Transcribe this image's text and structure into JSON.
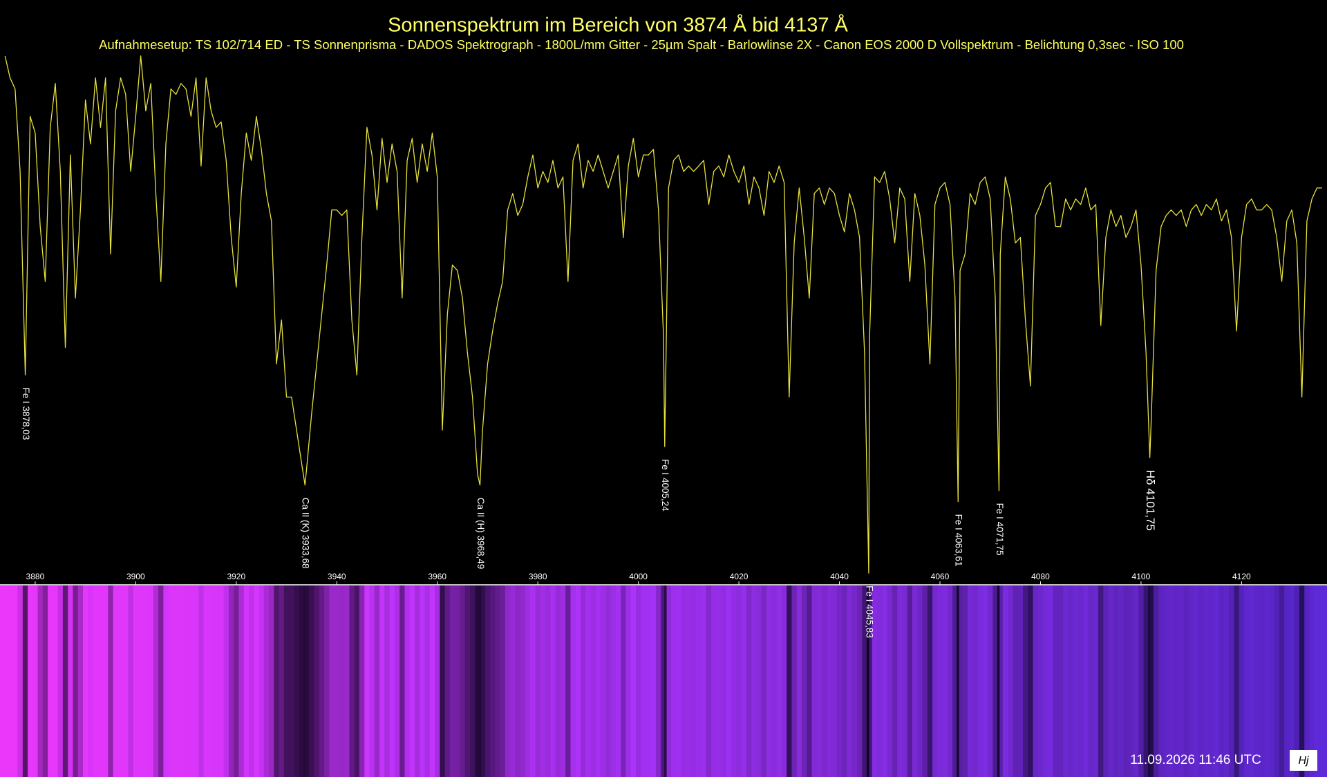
{
  "chart_data": {
    "type": "line",
    "title": "Sonnenspektrum im Bereich von 3874 Å  bid 4137 Å",
    "subtitle": "Aufnahmesetup: TS 102/714 ED - TS Sonnenprisma - DADOS Spektrograph - 1800L/mm Gitter - 25µm Spalt - Barlowlinse 2X - Canon EOS 2000 D Vollspektrum - Belichtung 0,3sec  - ISO 100",
    "xlim": [
      3873,
      4137
    ],
    "ylim": [
      0,
      100
    ],
    "xticks": [
      3880,
      3900,
      3920,
      3940,
      3960,
      3980,
      4000,
      4020,
      4040,
      4060,
      4080,
      4100,
      4120
    ],
    "series": [
      {
        "color": "#e8e23c",
        "x": [
          3874,
          3875,
          3876,
          3877,
          3878.03,
          3879,
          3880,
          3881,
          3882,
          3883,
          3884,
          3885,
          3886,
          3887,
          3888,
          3889,
          3890,
          3891,
          3892,
          3893,
          3894,
          3895,
          3896,
          3897,
          3898,
          3899,
          3900,
          3901,
          3902,
          3903,
          3904,
          3905,
          3906,
          3907,
          3908,
          3909,
          3910,
          3911,
          3912,
          3913,
          3914,
          3915,
          3916,
          3917,
          3918,
          3919,
          3920,
          3921,
          3922,
          3923,
          3924,
          3925,
          3926,
          3927,
          3928,
          3929,
          3930,
          3931,
          3932,
          3933,
          3933.68,
          3934,
          3935,
          3936,
          3937,
          3938,
          3939,
          3940,
          3941,
          3942,
          3943,
          3944,
          3945,
          3946,
          3947,
          3948,
          3949,
          3950,
          3951,
          3952,
          3953,
          3954,
          3955,
          3956,
          3957,
          3958,
          3959,
          3960,
          3961,
          3962,
          3963,
          3964,
          3965,
          3966,
          3967,
          3968,
          3968.49,
          3969,
          3970,
          3971,
          3972,
          3973,
          3974,
          3975,
          3976,
          3977,
          3978,
          3979,
          3980,
          3981,
          3982,
          3983,
          3984,
          3985,
          3986,
          3987,
          3988,
          3989,
          3990,
          3991,
          3992,
          3993,
          3994,
          3995,
          3996,
          3997,
          3998,
          3999,
          4000,
          4001,
          4002,
          4003,
          4004,
          4005,
          4005.24,
          4006,
          4007,
          4008,
          4009,
          4010,
          4011,
          4012,
          4013,
          4014,
          4015,
          4016,
          4017,
          4018,
          4019,
          4020,
          4021,
          4022,
          4023,
          4024,
          4025,
          4026,
          4027,
          4028,
          4029,
          4030,
          4031,
          4032,
          4033,
          4034,
          4035,
          4036,
          4037,
          4038,
          4039,
          4040,
          4041,
          4042,
          4043,
          4044,
          4045,
          4045.83,
          4046,
          4047,
          4048,
          4049,
          4050,
          4051,
          4052,
          4053,
          4054,
          4055,
          4056,
          4057,
          4058,
          4059,
          4060,
          4061,
          4062,
          4063,
          4063.61,
          4064,
          4065,
          4066,
          4067,
          4068,
          4069,
          4070,
          4071,
          4071.75,
          4072,
          4073,
          4074,
          4075,
          4076,
          4077,
          4078,
          4079,
          4080,
          4081,
          4082,
          4083,
          4084,
          4085,
          4086,
          4087,
          4088,
          4089,
          4090,
          4091,
          4092,
          4093,
          4094,
          4095,
          4096,
          4097,
          4098,
          4099,
          4100,
          4101,
          4101.75,
          4102,
          4103,
          4104,
          4105,
          4106,
          4107,
          4108,
          4109,
          4110,
          4111,
          4112,
          4113,
          4114,
          4115,
          4116,
          4117,
          4118,
          4119,
          4120,
          4121,
          4122,
          4123,
          4124,
          4125,
          4126,
          4127,
          4128,
          4129,
          4130,
          4131,
          4132,
          4133,
          4134,
          4135,
          4136
        ],
        "values": [
          96,
          92,
          90,
          75,
          38,
          85,
          82,
          65,
          55,
          83,
          91,
          75,
          43,
          78,
          52,
          68,
          88,
          80,
          92,
          83,
          92,
          60,
          86,
          92,
          89,
          75,
          85,
          96,
          86,
          91,
          71,
          55,
          80,
          90,
          89,
          91,
          90,
          85,
          92,
          76,
          92,
          86,
          83,
          84,
          77,
          63,
          54,
          71,
          82,
          77,
          85,
          79,
          71,
          66,
          40,
          48,
          34,
          34,
          28,
          22,
          18,
          21,
          31,
          40,
          49,
          58,
          68,
          68,
          67,
          68,
          48,
          38,
          63,
          83,
          78,
          68,
          81,
          73,
          80,
          75,
          52,
          77,
          81,
          73,
          80,
          75,
          82,
          74,
          28,
          49,
          58,
          57,
          52,
          42,
          34,
          20,
          18,
          28,
          40,
          46,
          51,
          55,
          68,
          71,
          67,
          69,
          74,
          78,
          72,
          75,
          73,
          77,
          72,
          74,
          55,
          77,
          80,
          72,
          77,
          75,
          78,
          75,
          72,
          75,
          78,
          63,
          76,
          81,
          74,
          78,
          78,
          79,
          68,
          45,
          25,
          72,
          77,
          78,
          75,
          76,
          75,
          76,
          77,
          69,
          75,
          76,
          74,
          78,
          75,
          73,
          76,
          69,
          74,
          72,
          67,
          75,
          73,
          76,
          73,
          34,
          62,
          72,
          63,
          52,
          71,
          72,
          69,
          72,
          71,
          67,
          64,
          71,
          68,
          63,
          42,
          2,
          45,
          74,
          73,
          75,
          70,
          62,
          72,
          70,
          55,
          71,
          67,
          58,
          40,
          69,
          72,
          73,
          69,
          52,
          15,
          57,
          60,
          71,
          69,
          73,
          74,
          70,
          52,
          17,
          60,
          74,
          70,
          62,
          63,
          48,
          36,
          67,
          69,
          72,
          73,
          65,
          65,
          70,
          68,
          70,
          69,
          72,
          68,
          69,
          47,
          63,
          68,
          65,
          67,
          63,
          65,
          68,
          58,
          42,
          23,
          29,
          57,
          65,
          67,
          68,
          67,
          68,
          65,
          68,
          69,
          67,
          69,
          68,
          70,
          66,
          68,
          63,
          46,
          63,
          69,
          70,
          68,
          68,
          69,
          68,
          63,
          55,
          66,
          68,
          62,
          34,
          66,
          70,
          72,
          72
        ]
      }
    ],
    "annotations": [
      {
        "text": "Fe I 3878,03",
        "x": 3878.03
      },
      {
        "text": "Ca II (K) 3933,68",
        "x": 3933.68
      },
      {
        "text": "Ca II (H) 3968,49",
        "x": 3968.49
      },
      {
        "text": "Fe I 4005,24",
        "x": 4005.24
      },
      {
        "text": "Fe I 4045,83",
        "x": 4045.83
      },
      {
        "text": "Fe I 4063,61",
        "x": 4063.61
      },
      {
        "text": "Fe I 4071,75",
        "x": 4071.75
      },
      {
        "text": "Hδ 4101,75",
        "x": 4101.75
      }
    ],
    "timestamp": "11.09.2026 11:46 UTC",
    "logo": "Hj"
  }
}
